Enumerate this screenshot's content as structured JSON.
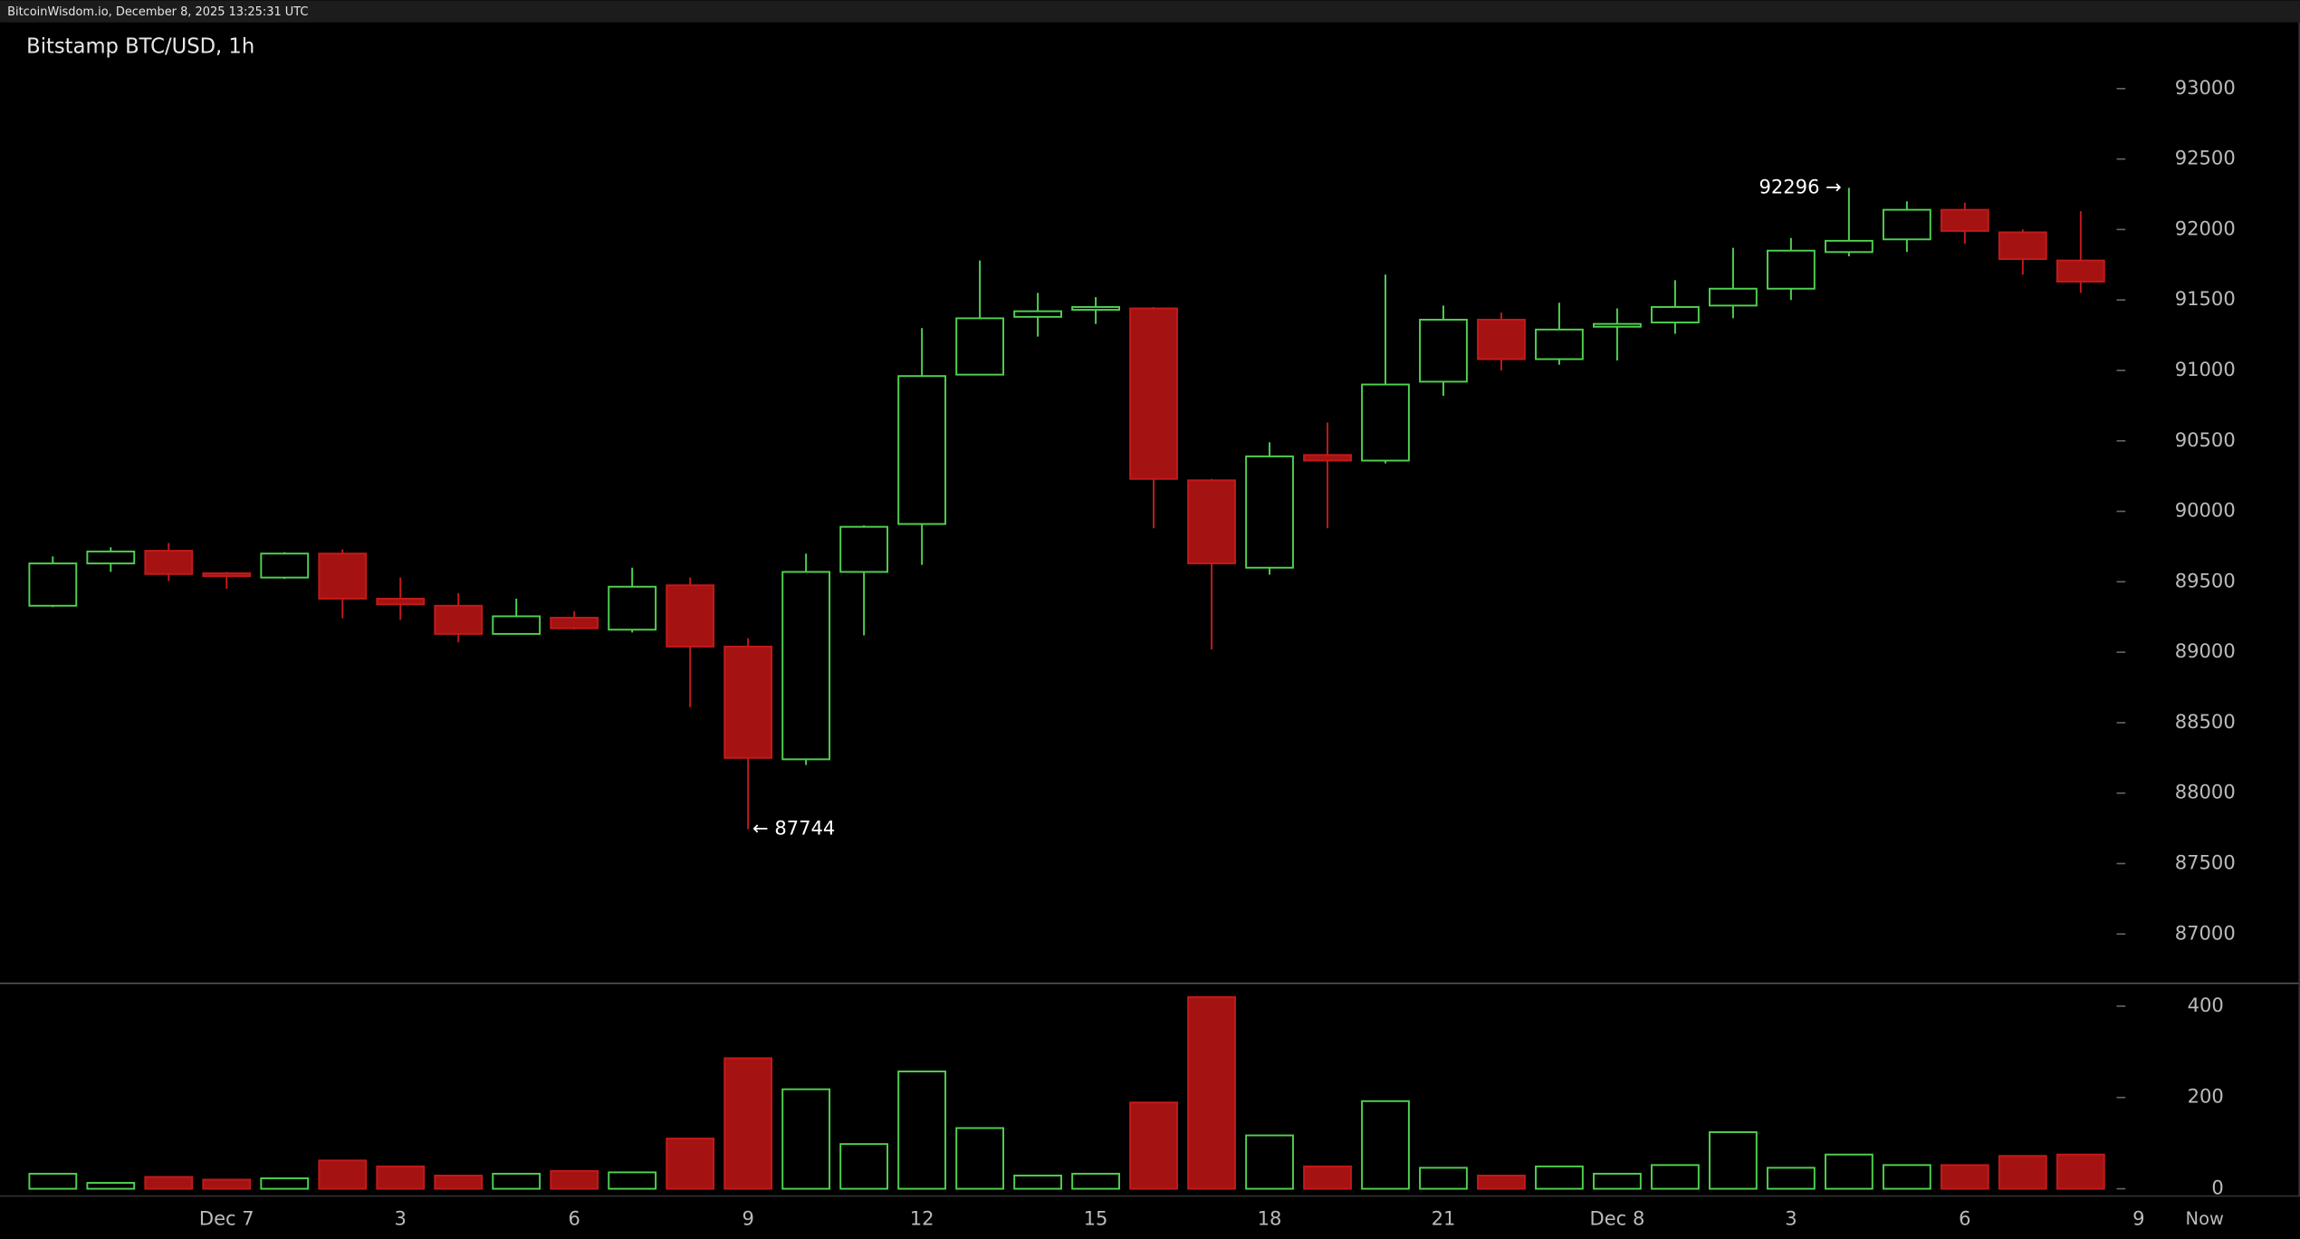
{
  "header": "BitcoinWisdom.io, December 8, 2025 13:25:31 UTC",
  "chart_data": {
    "type": "candlestick",
    "title": "Bitstamp BTC/USD, 1h",
    "categories": [
      null,
      null,
      null,
      "Dec 7",
      null,
      null,
      "3",
      null,
      null,
      "6",
      null,
      null,
      "9",
      null,
      null,
      "12",
      null,
      null,
      "15",
      null,
      null,
      "18",
      null,
      null,
      "21",
      null,
      null,
      "Dec 8",
      null,
      null,
      "3",
      null,
      null,
      "6",
      null,
      null
    ],
    "x_labels_after": [
      "9",
      "Now"
    ],
    "open": [
      89330,
      89630,
      89720,
      89560,
      89530,
      89700,
      89380,
      89330,
      89130,
      89245,
      89160,
      89475,
      89040,
      88240,
      89570,
      89910,
      90970,
      91380,
      91430,
      91440,
      90220,
      89600,
      90400,
      90360,
      90920,
      91360,
      91080,
      91310,
      91340,
      91460,
      91580,
      91840,
      91930,
      92140,
      91980,
      91780
    ],
    "high": [
      89680,
      89745,
      89775,
      89570,
      89710,
      89730,
      89530,
      89420,
      89380,
      89290,
      89600,
      89530,
      89100,
      89700,
      89900,
      91300,
      91780,
      91550,
      91520,
      91450,
      90230,
      90490,
      90630,
      91680,
      91460,
      91410,
      91480,
      91440,
      91640,
      91870,
      91940,
      92296,
      92200,
      92190,
      92000,
      92130
    ],
    "low": [
      89320,
      89570,
      89505,
      89450,
      89520,
      89240,
      89230,
      89070,
      89130,
      89160,
      89140,
      88610,
      87744,
      88200,
      89120,
      89620,
      90970,
      91240,
      91330,
      89880,
      89020,
      89550,
      89880,
      90340,
      90820,
      91000,
      91040,
      91070,
      91260,
      91370,
      91500,
      91810,
      91840,
      91900,
      91680,
      91550
    ],
    "close": [
      89630,
      89715,
      89555,
      89540,
      89700,
      89380,
      89340,
      89130,
      89255,
      89170,
      89465,
      89040,
      88250,
      89570,
      89890,
      90960,
      91370,
      91420,
      91450,
      90230,
      89630,
      90390,
      90360,
      90900,
      91360,
      91080,
      91290,
      91330,
      91450,
      91580,
      91850,
      91920,
      92140,
      91990,
      91790,
      91630
    ],
    "volume": [
      33,
      13,
      26,
      20,
      23,
      62,
      49,
      29,
      33,
      39,
      36,
      110,
      286,
      218,
      98,
      257,
      133,
      29,
      33,
      189,
      420,
      117,
      49,
      192,
      46,
      29,
      49,
      33,
      52,
      124,
      46,
      75,
      52,
      52,
      72,
      75
    ],
    "up_color": "#4fd14f",
    "down_color": "#a51212",
    "ylim": [
      86650,
      93470
    ],
    "yticks": [
      87000,
      87500,
      88000,
      88500,
      89000,
      89500,
      90000,
      90500,
      91000,
      91500,
      92000,
      92500,
      93000
    ],
    "volume_lim": [
      -16,
      450
    ],
    "volume_ticks": [
      0,
      200,
      400
    ],
    "annotations": [
      "92296 →",
      "← 87744"
    ]
  }
}
